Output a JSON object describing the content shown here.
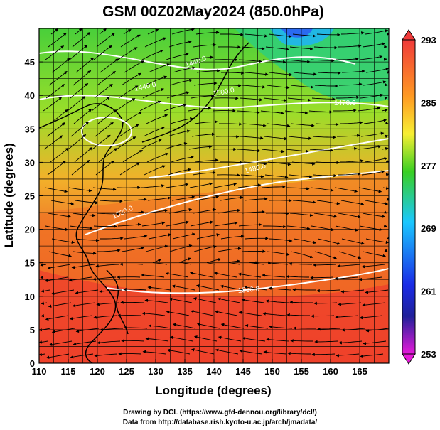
{
  "title": "GSM 00Z02May2024 (850.0hPa)",
  "xlabel": "Longitude (degrees)",
  "ylabel": "Latitude  (degrees)",
  "x_ticks": [
    "110",
    "115",
    "120",
    "125",
    "130",
    "135",
    "140",
    "145",
    "150",
    "155",
    "160",
    "165"
  ],
  "y_ticks": [
    "0",
    "5",
    "10",
    "15",
    "20",
    "25",
    "30",
    "35",
    "40",
    "45"
  ],
  "lon_range": [
    110,
    170
  ],
  "lat_range": [
    0,
    50
  ],
  "colorbar": {
    "labels": [
      "293",
      "285",
      "277",
      "269",
      "261",
      "253"
    ],
    "min": 253,
    "max": 293,
    "colors": [
      "#ff2020",
      "#ff8c1a",
      "#ffff33",
      "#33d11a",
      "#1ad2ff",
      "#1a33ff",
      "#1a1aa0",
      "#e61ad9"
    ]
  },
  "contours": [
    {
      "label": "1440.0"
    },
    {
      "label": "1470.0"
    },
    {
      "label": "1440.0"
    },
    {
      "label": "1500.0"
    },
    {
      "label": "1480.0"
    },
    {
      "label": "1520.0"
    },
    {
      "label": "1530.0"
    }
  ],
  "credits": [
    "Drawing by DCL (https://www.gfd-dennou.org/library/dcl/)",
    "Data from http://database.rish.kyoto-u.ac.jp/arch/jmadata/"
  ]
}
